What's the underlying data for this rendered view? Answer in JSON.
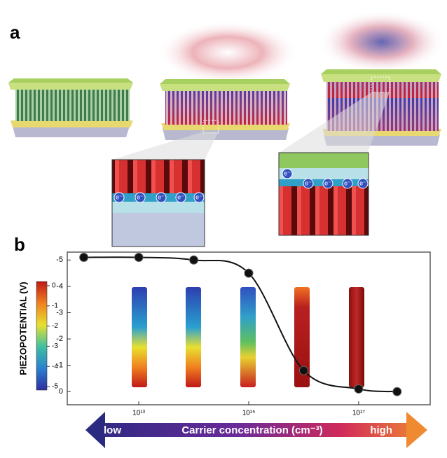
{
  "panel_a": {
    "label": "a",
    "electron_label": "e⁻"
  },
  "chart_data": {
    "type": "line",
    "panel_label": "b",
    "y_label": "PIEZOPOTENTIAL (V)",
    "x": [
      1000000000000.0,
      10000000000000.0,
      100000000000000.0,
      1000000000000000.0,
      1e+16,
      1e+17,
      5e+17
    ],
    "series": [
      {
        "color": "#111111",
        "values": [
          -5.1,
          -5.1,
          -5.0,
          -4.5,
          -0.8,
          -0.1,
          0
        ]
      }
    ],
    "log_x": true,
    "xlim": [
      500000000000.0,
      2e+18
    ],
    "xticks": [
      {
        "value": 10000000000000.0,
        "label": "10¹³"
      },
      {
        "value": 1000000000000000.0,
        "label": "10¹⁵"
      },
      {
        "value": 1e+17,
        "label": "10¹⁷"
      }
    ],
    "ylim": [
      0.5,
      -5.3
    ],
    "yticks": [
      -5,
      -4,
      -3,
      -2,
      -1,
      0
    ],
    "colorbar_ticks": [
      0,
      -1,
      -2,
      -3,
      -4,
      -5
    ],
    "arrow": {
      "low": "low",
      "label": "Carrier concentration (cm⁻³)",
      "high": "high"
    }
  }
}
